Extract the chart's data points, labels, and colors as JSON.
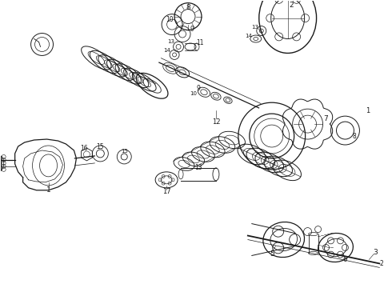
{
  "background_color": "#ffffff",
  "figure_width": 4.9,
  "figure_height": 3.6,
  "dpi": 100,
  "line_color": "#1a1a1a",
  "lw_main": 0.9,
  "lw_thin": 0.5,
  "lw_thick": 1.3
}
